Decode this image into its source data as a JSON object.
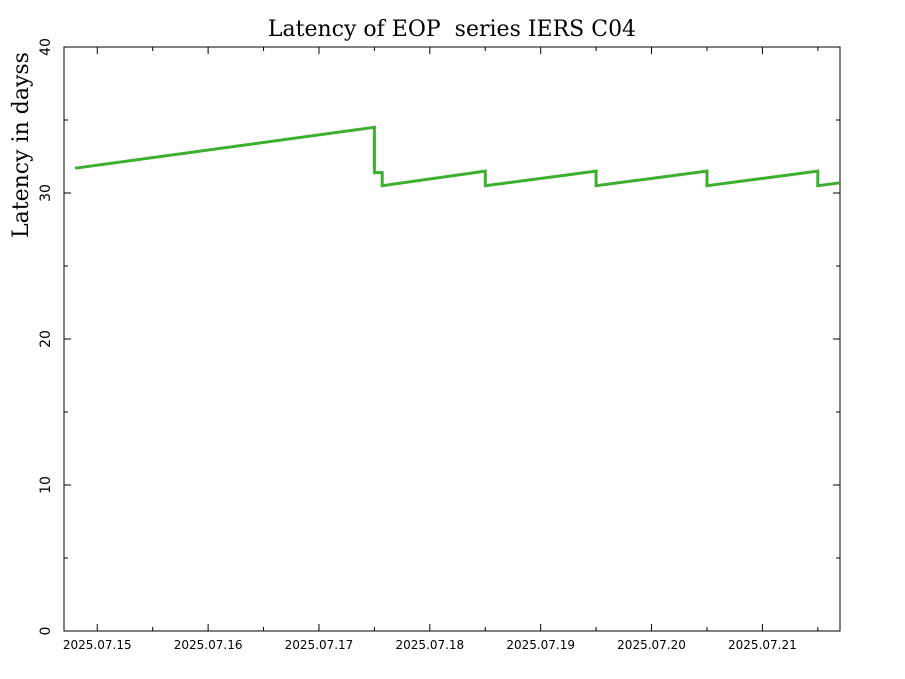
{
  "chart_data": {
    "type": "line",
    "title": "Latency of EOP  series IERS C04",
    "xlabel": "",
    "ylabel": "Latency in dayss",
    "xlim": [
      "2025.07.147",
      "2025.07.217"
    ],
    "ylim": [
      0,
      40
    ],
    "y_ticks": [
      0,
      10,
      20,
      30,
      40
    ],
    "x_ticks": [
      "2025.07.15",
      "2025.07.16",
      "2025.07.17",
      "2025.07.18",
      "2025.07.19",
      "2025.07.20",
      "2025.07.21"
    ],
    "x_tick_values": [
      15,
      16,
      17,
      18,
      19,
      20,
      21
    ],
    "grid": false,
    "legend": "none",
    "series": [
      {
        "color": "#3cb02e",
        "x": [
          14.8,
          17.5,
          17.5,
          17.57,
          17.57,
          18.5,
          18.5,
          19.5,
          19.5,
          20.5,
          20.5,
          21.5,
          21.5,
          21.7
        ],
        "y": [
          31.7,
          34.5,
          31.4,
          31.4,
          30.5,
          31.5,
          30.5,
          31.5,
          30.5,
          31.5,
          30.5,
          31.5,
          30.5,
          30.7
        ]
      }
    ]
  }
}
